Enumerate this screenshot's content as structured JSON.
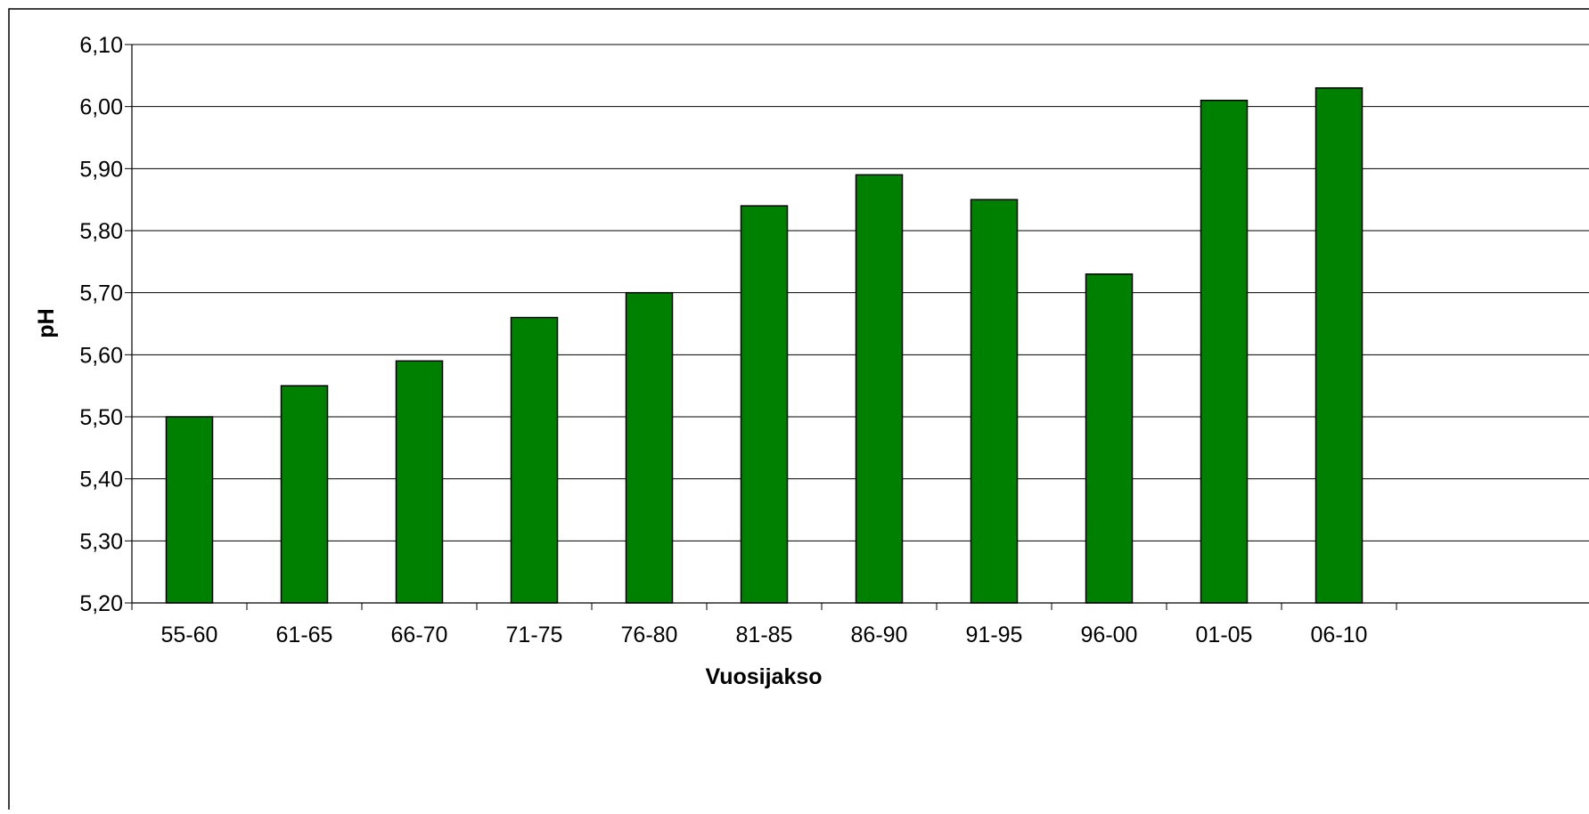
{
  "chart_data": {
    "type": "bar",
    "title": "",
    "xlabel": "Vuosijakso",
    "ylabel": "pH",
    "categories": [
      "55-60",
      "61-65",
      "66-70",
      "71-75",
      "76-80",
      "81-85",
      "86-90",
      "91-95",
      "96-00",
      "01-05",
      "06-10"
    ],
    "values": [
      5.5,
      5.55,
      5.59,
      5.66,
      5.7,
      5.84,
      5.89,
      5.85,
      5.73,
      6.01,
      6.03
    ],
    "ylim": [
      5.2,
      6.1
    ],
    "yticks": [
      "5,20",
      "5,30",
      "5,40",
      "5,50",
      "5,60",
      "5,70",
      "5,80",
      "5,90",
      "6,00",
      "6,10"
    ],
    "grid": true,
    "legend": "none",
    "colors": {
      "bar": "#008000",
      "bar_stroke": "#000000",
      "gridline": "#000000",
      "frame": "#000000"
    }
  }
}
